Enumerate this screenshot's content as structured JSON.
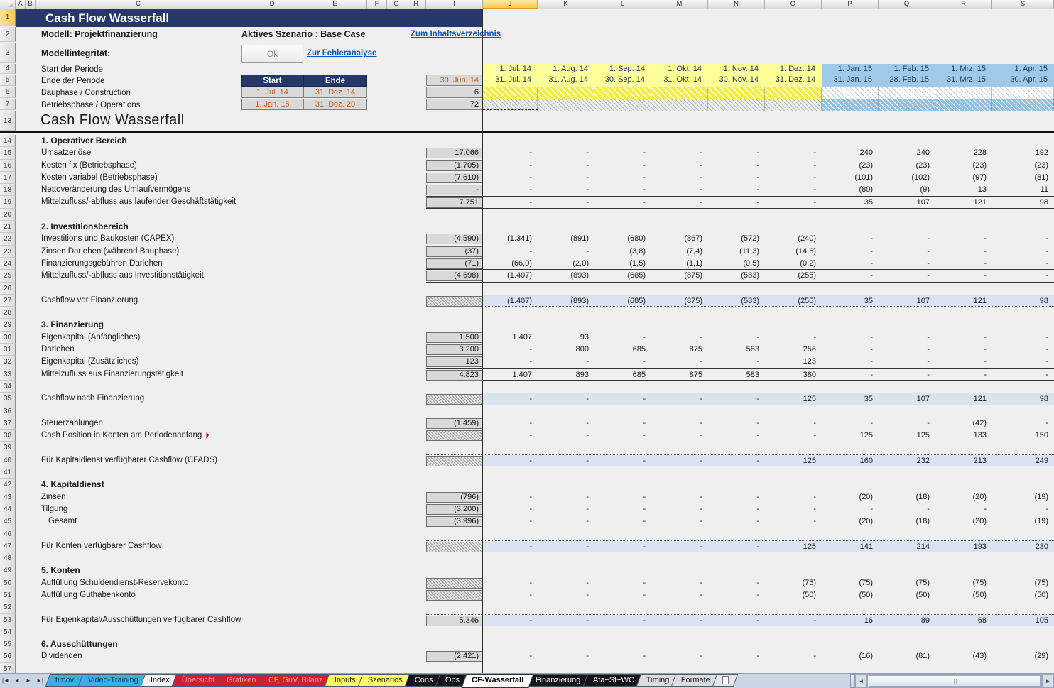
{
  "colors": {
    "accent_navy": "#25376B",
    "construction_yellow": "#FFFF99",
    "operations_blue": "#9FC9E8",
    "summary_blue": "#D9E4F0",
    "input_gray": "#D9D9D9",
    "input_text_orange": "#BF5B16",
    "link_blue": "#0B55C4",
    "tab_red": "#D42025",
    "tab_yellow": "#FFFF5C",
    "tab_cyan": "#35B1E4"
  },
  "grid": {
    "column_letters": [
      "A",
      "B",
      "C",
      "D",
      "E",
      "F",
      "G",
      "H",
      "I",
      "J",
      "K",
      "L",
      "M",
      "N",
      "O",
      "P",
      "Q",
      "R",
      "S"
    ],
    "selected_column": "J",
    "row_numbers_top": [
      "1",
      "2",
      "3",
      "4",
      "5",
      "6",
      "7"
    ],
    "heading_row_number": "13"
  },
  "top": {
    "title": "Cash Flow Wasserfall",
    "model": "Modell: Projektfinanzierung",
    "scenario": "Aktives Szenario : Base Case",
    "toc_link": "Zum Inhaltsverzeichnis",
    "integrity": "Modellintegrität:",
    "ok_button": "Ok",
    "error_link": "Zur Fehleranalyse",
    "start_periode": "Start der Periode",
    "ende_periode": "Ende der Periode",
    "bauphase": "Bauphase / Construction",
    "betriebsphase": "Betriebsphase / Operations",
    "start_header": "Start",
    "ende_header": "Ende",
    "ende_periode_value": "30. Jun. 14",
    "bau_start": "1. Jul. 14",
    "bau_ende": "31. Dez. 14",
    "bau_perioden": "6",
    "betrieb_start": "1. Jan. 15",
    "betrieb_ende": "31. Dez. 20",
    "betrieb_perioden": "72"
  },
  "periods": {
    "start_dates": [
      "1. Jul. 14",
      "1. Aug. 14",
      "1. Sep. 14",
      "1. Okt. 14",
      "1. Nov. 14",
      "1. Dez. 14",
      "1. Jan. 15",
      "1. Feb. 15",
      "1. Mrz. 15",
      "1. Apr. 15"
    ],
    "end_dates": [
      "31. Jul. 14",
      "31. Aug. 14",
      "30. Sep. 14",
      "31. Okt. 14",
      "30. Nov. 14",
      "31. Dez. 14",
      "31. Jan. 15",
      "28. Feb. 15",
      "31. Mrz. 15",
      "30. Apr. 15"
    ],
    "construction_count": 6
  },
  "sheet": {
    "heading": "Cash Flow Wasserfall",
    "rows": [
      {
        "n": "14",
        "t": "section",
        "label": "1. Operativer Bereich"
      },
      {
        "n": "15",
        "t": "data",
        "label": "Umsatzerlöse",
        "i": "17.066",
        "v": [
          "-",
          "-",
          "-",
          "-",
          "-",
          "-",
          "240",
          "240",
          "228",
          "192"
        ]
      },
      {
        "n": "16",
        "t": "data",
        "label": "Kosten fix (Betriebsphase)",
        "i": "(1.705)",
        "v": [
          "-",
          "-",
          "-",
          "-",
          "-",
          "-",
          "(23)",
          "(23)",
          "(23)",
          "(23)"
        ]
      },
      {
        "n": "17",
        "t": "data",
        "label": "Kosten variabel (Betriebsphase)",
        "i": "(7.610)",
        "v": [
          "-",
          "-",
          "-",
          "-",
          "-",
          "-",
          "(101)",
          "(102)",
          "(97)",
          "(81)"
        ]
      },
      {
        "n": "18",
        "t": "data",
        "label": "Nettoveränderung des Umlaufvermögens",
        "i": "-",
        "v": [
          "-",
          "-",
          "-",
          "-",
          "-",
          "-",
          "(80)",
          "(9)",
          "13",
          "11"
        ]
      },
      {
        "n": "19",
        "t": "data",
        "label": "Mittelzufluss/-abfluss aus laufender Geschäftstätigkeit",
        "i": "7.751",
        "vb": "tb",
        "v": [
          "-",
          "-",
          "-",
          "-",
          "-",
          "-",
          "35",
          "107",
          "121",
          "98"
        ]
      },
      {
        "n": "20",
        "t": "blank"
      },
      {
        "n": "21",
        "t": "section",
        "label": "2. Investitionsbereich"
      },
      {
        "n": "22",
        "t": "data",
        "label": "Investitions und Baukosten (CAPEX)",
        "i": "(4.590)",
        "v": [
          "(1.341)",
          "(891)",
          "(680)",
          "(867)",
          "(572)",
          "(240)",
          "-",
          "-",
          "-",
          "-"
        ]
      },
      {
        "n": "23",
        "t": "data",
        "label": "Zinsen Darlehen (während Bauphase)",
        "i": "(37)",
        "v": [
          "-",
          "-",
          "(3,8)",
          "(7,4)",
          "(11,3)",
          "(14,6)",
          "-",
          "-",
          "-",
          "-"
        ]
      },
      {
        "n": "24",
        "t": "data",
        "label": "Finanzierungsgebühren Darlehen",
        "i": "(71)",
        "vb": "b",
        "v": [
          "(66,0)",
          "(2,0)",
          "(1,5)",
          "(1,1)",
          "(0,5)",
          "(0,2)",
          "-",
          "-",
          "-",
          "-"
        ]
      },
      {
        "n": "25",
        "t": "data",
        "label": "Mittelzufluss/-abfluss aus Investitionstätigkeit",
        "i": "(4.698)",
        "vb": "b",
        "v": [
          "(1.407)",
          "(893)",
          "(685)",
          "(875)",
          "(583)",
          "(255)",
          "-",
          "-",
          "-",
          "-"
        ]
      },
      {
        "n": "26",
        "t": "blank"
      },
      {
        "n": "27",
        "t": "sum",
        "label": "Cashflow vor Finanzierung",
        "ih": true,
        "v": [
          "(1.407)",
          "(893)",
          "(685)",
          "(875)",
          "(583)",
          "(255)",
          "35",
          "107",
          "121",
          "98"
        ]
      },
      {
        "n": "28",
        "t": "blank"
      },
      {
        "n": "29",
        "t": "section",
        "label": "3. Finanzierung"
      },
      {
        "n": "30",
        "t": "data",
        "label": "Eigenkapital (Anfängliches)",
        "i": "1.500",
        "v": [
          "1.407",
          "93",
          "-",
          "-",
          "-",
          "-",
          "-",
          "-",
          "-",
          "-"
        ]
      },
      {
        "n": "31",
        "t": "data",
        "label": "Darlehen",
        "i": "3.200",
        "v": [
          "-",
          "800",
          "685",
          "875",
          "583",
          "256",
          "-",
          "-",
          "-",
          "-"
        ]
      },
      {
        "n": "32",
        "t": "data",
        "label": "Eigenkapital (Zusätzliches)",
        "i": "123",
        "v": [
          "-",
          "-",
          "-",
          "-",
          "-",
          "123",
          "-",
          "-",
          "-",
          "-"
        ]
      },
      {
        "n": "33",
        "t": "data",
        "label": "Mittelzufluss aus Finanzierungstätigkeit",
        "i": "4.823",
        "vb": "tb",
        "v": [
          "1.407",
          "893",
          "685",
          "875",
          "583",
          "380",
          "-",
          "-",
          "-",
          "-"
        ]
      },
      {
        "n": "34",
        "t": "blank"
      },
      {
        "n": "35",
        "t": "sum",
        "label": "Cashflow nach Finanzierung",
        "ih": true,
        "v": [
          "-",
          "-",
          "-",
          "-",
          "-",
          "125",
          "35",
          "107",
          "121",
          "98"
        ]
      },
      {
        "n": "36",
        "t": "blank"
      },
      {
        "n": "37",
        "t": "data",
        "label": "Steuerzahlungen",
        "i": "(1.459)",
        "v": [
          "-",
          "-",
          "-",
          "-",
          "-",
          "-",
          "-",
          "-",
          "(42)",
          "-"
        ]
      },
      {
        "n": "38",
        "t": "data",
        "label": "Cash Position in Konten am Periodenanfang",
        "ih": true,
        "comment": true,
        "v": [
          "-",
          "-",
          "-",
          "-",
          "-",
          "-",
          "125",
          "125",
          "133",
          "150"
        ]
      },
      {
        "n": "39",
        "t": "blank"
      },
      {
        "n": "40",
        "t": "sum",
        "label": "Für Kapitaldienst verfügbarer Cashflow (CFADS)",
        "ih": true,
        "v": [
          "-",
          "-",
          "-",
          "-",
          "-",
          "125",
          "160",
          "232",
          "213",
          "249"
        ]
      },
      {
        "n": "41",
        "t": "blank"
      },
      {
        "n": "42",
        "t": "section",
        "label": "4. Kapitaldienst"
      },
      {
        "n": "43",
        "t": "data",
        "label": "Zinsen",
        "i": "(796)",
        "v": [
          "-",
          "-",
          "-",
          "-",
          "-",
          "-",
          "(20)",
          "(18)",
          "(20)",
          "(19)"
        ]
      },
      {
        "n": "44",
        "t": "data",
        "label": "Tilgung",
        "i": "(3.200)",
        "vb": "b",
        "v": [
          "-",
          "-",
          "-",
          "-",
          "-",
          "-",
          "-",
          "-",
          "-",
          "-"
        ]
      },
      {
        "n": "45",
        "t": "data",
        "label": "Gesamt",
        "indent": true,
        "i": "(3.996)",
        "v": [
          "-",
          "-",
          "-",
          "-",
          "-",
          "-",
          "(20)",
          "(18)",
          "(20)",
          "(19)"
        ]
      },
      {
        "n": "46",
        "t": "blank"
      },
      {
        "n": "47",
        "t": "sum",
        "label": "Für Konten verfügbarer Cashflow",
        "ih": true,
        "v": [
          "-",
          "-",
          "-",
          "-",
          "-",
          "125",
          "141",
          "214",
          "193",
          "230"
        ]
      },
      {
        "n": "48",
        "t": "blank"
      },
      {
        "n": "49",
        "t": "section",
        "label": "5. Konten"
      },
      {
        "n": "50",
        "t": "data",
        "label": "Auffüllung Schuldendienst-Reservekonto",
        "ih": true,
        "v": [
          "-",
          "-",
          "-",
          "-",
          "-",
          "(75)",
          "(75)",
          "(75)",
          "(75)",
          "(75)"
        ]
      },
      {
        "n": "51",
        "t": "data",
        "label": "Auffüllung Guthabenkonto",
        "ih": true,
        "v": [
          "-",
          "-",
          "-",
          "-",
          "-",
          "(50)",
          "(50)",
          "(50)",
          "(50)",
          "(50)"
        ]
      },
      {
        "n": "52",
        "t": "blank"
      },
      {
        "n": "53",
        "t": "sum",
        "label": "Für Eigenkapital/Ausschüttungen verfügbarer Cashflow",
        "i": "5.346",
        "v": [
          "-",
          "-",
          "-",
          "-",
          "-",
          "-",
          "16",
          "89",
          "68",
          "105"
        ]
      },
      {
        "n": "54",
        "t": "blank"
      },
      {
        "n": "55",
        "t": "section",
        "label": "6. Ausschüttungen"
      },
      {
        "n": "56",
        "t": "data",
        "label": "Dividenden",
        "i": "(2.421)",
        "v": [
          "-",
          "-",
          "-",
          "-",
          "-",
          "-",
          "(16)",
          "(81)",
          "(43)",
          "(29)"
        ]
      },
      {
        "n": "57",
        "t": "blank"
      }
    ]
  },
  "tabs": {
    "nav": [
      "|◄",
      "◄",
      "►",
      "►|"
    ],
    "items": [
      {
        "label": "fimovi",
        "style": "blue"
      },
      {
        "label": "Video-Training",
        "style": "blue"
      },
      {
        "label": "Index",
        "style": "white"
      },
      {
        "label": "Übersicht",
        "style": "red"
      },
      {
        "label": "Grafiken",
        "style": "red"
      },
      {
        "label": "CF, GuV, Bilanz",
        "style": "red"
      },
      {
        "label": "Inputs",
        "style": "yellow"
      },
      {
        "label": "Szenarios",
        "style": "yellow"
      },
      {
        "label": "Cons",
        "style": "black"
      },
      {
        "label": "Ops",
        "style": "black"
      },
      {
        "label": "CF-Wasserfall",
        "style": "active"
      },
      {
        "label": "Finanzierung",
        "style": "black"
      },
      {
        "label": "Afa+St+WC",
        "style": "black"
      },
      {
        "label": "Timing",
        "style": "gray"
      },
      {
        "label": "Formate",
        "style": "gray"
      }
    ],
    "active": "CF-Wasserfall"
  },
  "scrollbar": {
    "left_arrow": "◄",
    "right_arrow": "►",
    "grip": "|||"
  }
}
